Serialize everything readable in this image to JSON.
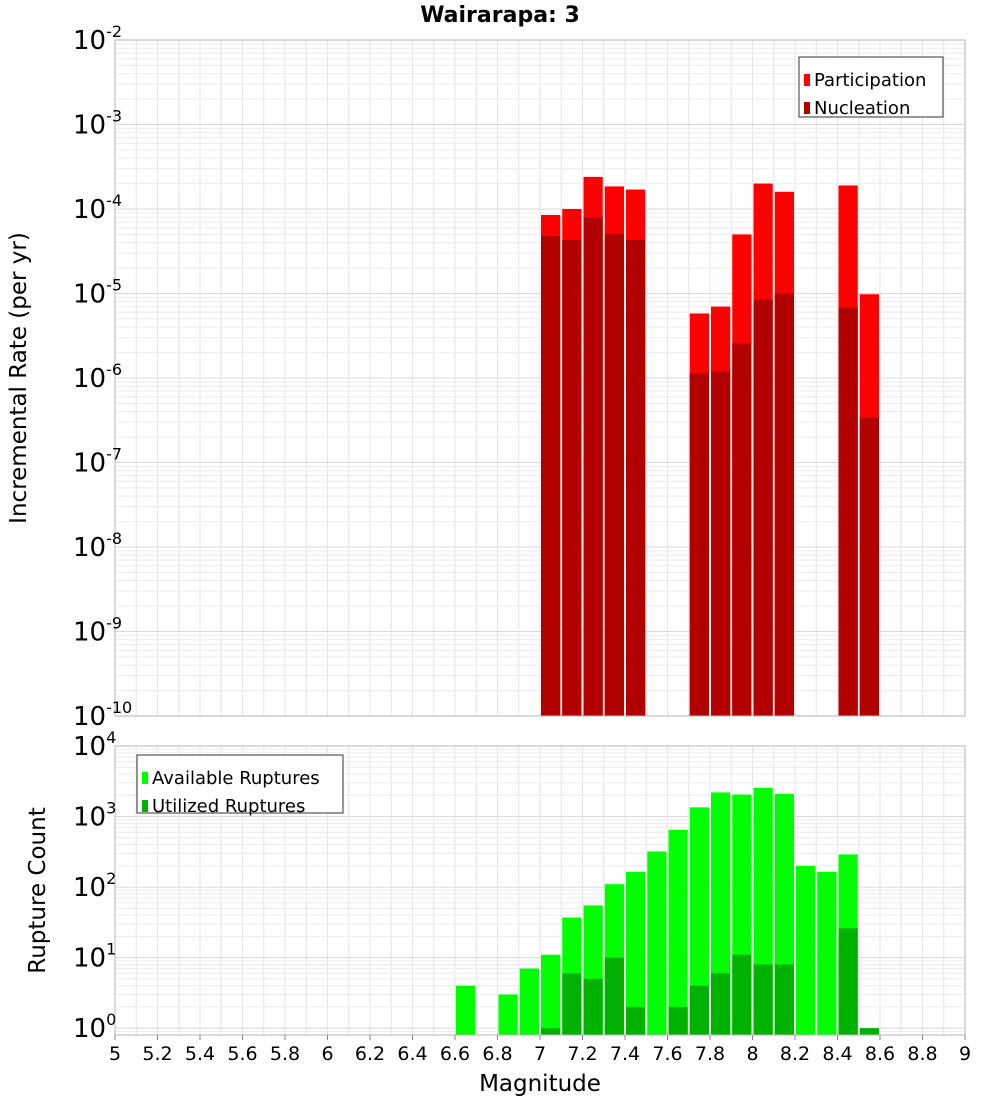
{
  "chart_data": [
    {
      "type": "bar",
      "title": "Wairarapa: 3",
      "xlabel": "",
      "ylabel": "Incremental Rate (per yr)",
      "y_scale": "log",
      "ylim": [
        1e-10,
        0.01
      ],
      "xlim": [
        5,
        9
      ],
      "y_tick_exponents": [
        "-2",
        "-3",
        "-4",
        "-5",
        "-6",
        "-7",
        "-8",
        "-9",
        "-10"
      ],
      "legend_position": "top-right",
      "colors": {
        "Participation": "#ff0000",
        "Nucleation": "#b20000"
      },
      "series": [
        {
          "name": "Participation",
          "x": [
            7.05,
            7.15,
            7.25,
            7.35,
            7.45,
            7.75,
            7.85,
            7.95,
            8.05,
            8.15,
            8.45,
            8.55
          ],
          "values": [
            8.5e-05,
            0.0001,
            0.00024,
            0.000185,
            0.00017,
            5.8e-06,
            7e-06,
            5e-05,
            0.0002,
            0.00016,
            0.00019,
            9.8e-06
          ]
        },
        {
          "name": "Nucleation",
          "x": [
            7.05,
            7.15,
            7.25,
            7.35,
            7.45,
            7.75,
            7.85,
            7.95,
            8.05,
            8.15,
            8.45,
            8.55
          ],
          "values": [
            4.8e-05,
            4.3e-05,
            8e-05,
            5.1e-05,
            4.3e-05,
            1.15e-06,
            1.2e-06,
            2.6e-06,
            8.5e-06,
            1e-05,
            6.8e-06,
            3.4e-07
          ]
        }
      ]
    },
    {
      "type": "bar",
      "title": "",
      "xlabel": "Magnitude",
      "ylabel": "Rupture Count",
      "y_scale": "log",
      "ylim": [
        0.8,
        10000.0
      ],
      "xlim": [
        5,
        9
      ],
      "x_tick_labels": [
        "5",
        "5.2",
        "5.4",
        "5.6",
        "5.8",
        "6",
        "6.2",
        "6.4",
        "6.6",
        "6.8",
        "7",
        "7.2",
        "7.4",
        "7.6",
        "7.8",
        "8",
        "8.2",
        "8.4",
        "8.6",
        "8.8",
        "9"
      ],
      "y_tick_exponents": [
        "4",
        "3",
        "2",
        "1",
        "0"
      ],
      "legend_position": "top-left",
      "colors": {
        "Available Ruptures": "#00ff00",
        "Utilized Ruptures": "#00b200"
      },
      "series": [
        {
          "name": "Available Ruptures",
          "x": [
            6.65,
            6.85,
            6.95,
            7.05,
            7.15,
            7.25,
            7.35,
            7.45,
            7.55,
            7.65,
            7.75,
            7.85,
            7.95,
            8.05,
            8.15,
            8.25,
            8.35,
            8.45
          ],
          "values": [
            4,
            3,
            7,
            11,
            37,
            55,
            110,
            165,
            320,
            650,
            1350,
            2200,
            2050,
            2550,
            2100,
            200,
            165,
            290
          ]
        },
        {
          "name": "Utilized Ruptures",
          "x": [
            7.05,
            7.15,
            7.25,
            7.35,
            7.45,
            7.65,
            7.75,
            7.85,
            7.95,
            8.05,
            8.15,
            8.45,
            8.55
          ],
          "values": [
            1,
            6,
            5,
            10,
            2,
            2,
            4,
            6,
            11,
            8,
            8,
            26,
            1
          ]
        }
      ]
    }
  ]
}
